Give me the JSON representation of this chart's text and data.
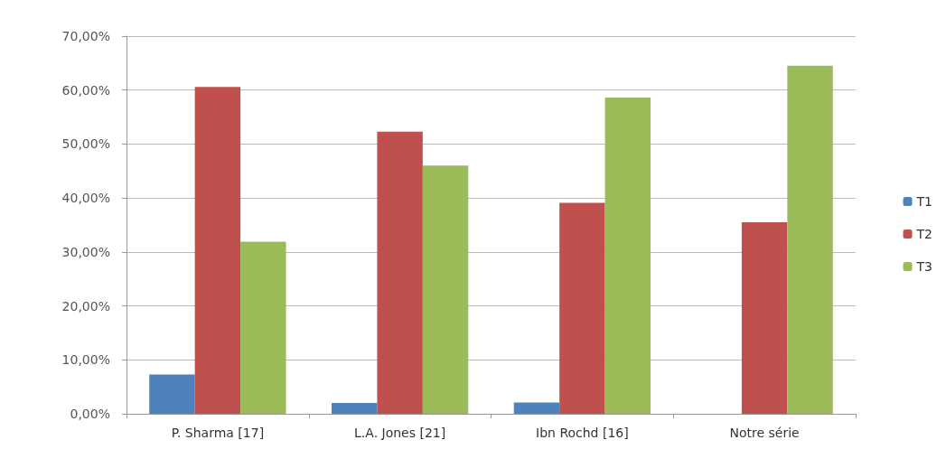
{
  "chart_data": {
    "type": "bar",
    "categories": [
      "P. Sharma [17]",
      "L.A. Jones [21]",
      "Ibn Rochd [16]",
      "Notre série"
    ],
    "series": [
      {
        "name": "T1",
        "color": "#4f81bd",
        "values": [
          7.3,
          2.0,
          2.1,
          0
        ]
      },
      {
        "name": "T2",
        "color": "#c0504d",
        "values": [
          60.6,
          52.3,
          39.1,
          35.5
        ]
      },
      {
        "name": "T3",
        "color": "#9bbb59",
        "values": [
          31.9,
          46.0,
          58.6,
          64.5
        ]
      }
    ],
    "ylim": [
      0,
      70
    ],
    "yticks": [
      {
        "value": 0,
        "label": "0,00%"
      },
      {
        "value": 10,
        "label": "10,00%"
      },
      {
        "value": 20,
        "label": "20,00%"
      },
      {
        "value": 30,
        "label": "30,00%"
      },
      {
        "value": 40,
        "label": "40,00%"
      },
      {
        "value": 50,
        "label": "50,00%"
      },
      {
        "value": 60,
        "label": "60,00%"
      },
      {
        "value": 70,
        "label": "70,00%"
      }
    ],
    "grid": "y",
    "legend": "right"
  }
}
